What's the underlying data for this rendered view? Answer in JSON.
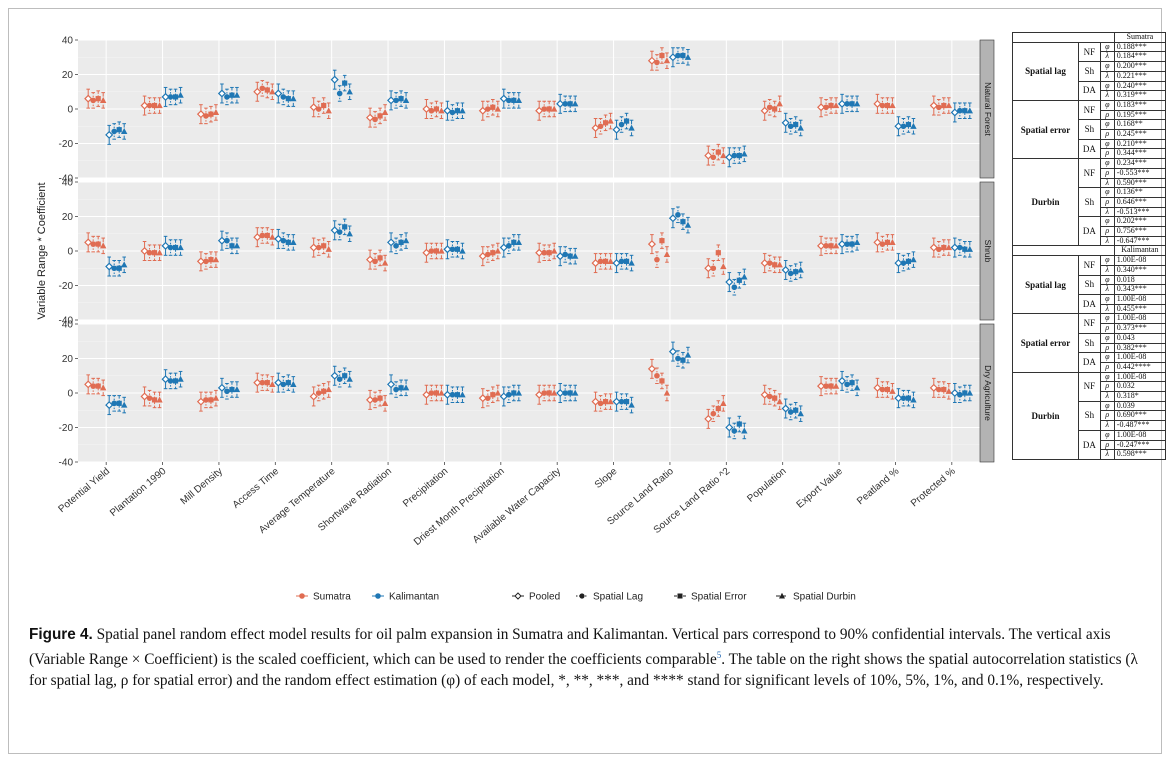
{
  "y_axis_title": "Variable Range * Coefficient",
  "panels": [
    "Natural Forest",
    "Shrub",
    "Dry Agriculture"
  ],
  "legend": {
    "regions": [
      {
        "label": "Sumatra",
        "color": "#e06c52"
      },
      {
        "label": "Kalimantan",
        "color": "#1f77b4"
      }
    ],
    "models": [
      "Pooled",
      "Spatial Lag",
      "Spatial Error",
      "Spatial Durbin"
    ]
  },
  "chart_data": {
    "type": "scatter",
    "title": "",
    "xlabel": "",
    "ylabel": "Variable Range * Coefficient",
    "ylim": [
      -40,
      40
    ],
    "yticks": [
      -40,
      -20,
      0,
      20,
      40
    ],
    "grid": true,
    "legend_position": "bottom",
    "categories": [
      "Potential Yield",
      "Plantation 1990",
      "Mill Density",
      "Access Time",
      "Average Temperature",
      "Shortwave Radiation",
      "Precipitation",
      "Driest Month Precipitation",
      "Available Water Capacity",
      "Slope",
      "Source Land Ratio",
      "Source Land Ratio ^2",
      "Population",
      "Export Value",
      "Peatland %",
      "Protected %"
    ],
    "series_order": [
      "Sumatra Pooled",
      "Sumatra Spatial Lag",
      "Sumatra Spatial Error",
      "Sumatra Spatial Durbin",
      "Kalimantan Pooled",
      "Kalimantan Spatial Lag",
      "Kalimantan Spatial Error",
      "Kalimantan Spatial Durbin"
    ],
    "facets": [
      {
        "panel": "Natural Forest",
        "sumatra": [
          [
            6,
            5,
            6,
            5
          ],
          [
            2,
            2,
            2,
            2
          ],
          [
            -3,
            -4,
            -3,
            -2
          ],
          [
            10,
            12,
            11,
            10
          ],
          [
            1,
            0,
            2,
            -1
          ],
          [
            -5,
            -6,
            -4,
            -2
          ],
          [
            0,
            -1,
            0,
            -1
          ],
          [
            -1,
            0,
            1,
            0
          ],
          [
            -1,
            0,
            0,
            0
          ],
          [
            -11,
            -10,
            -8,
            -7
          ],
          [
            28,
            27,
            31,
            28
          ],
          [
            -27,
            -28,
            -25,
            -27
          ],
          [
            -1,
            1,
            0,
            3
          ],
          [
            1,
            1,
            2,
            2
          ],
          [
            3,
            2,
            2,
            2
          ],
          [
            2,
            1,
            2,
            2
          ]
        ],
        "kalimantan": [
          [
            -15,
            -13,
            -12,
            -13
          ],
          [
            7,
            7,
            7,
            8
          ],
          [
            9,
            7,
            8,
            8
          ],
          [
            9,
            7,
            6,
            6
          ],
          [
            17,
            9,
            15,
            10
          ],
          [
            5,
            5,
            6,
            5
          ],
          [
            -1,
            -2,
            -1,
            -1
          ],
          [
            6,
            5,
            5,
            5
          ],
          [
            3,
            3,
            3,
            3
          ],
          [
            -12,
            -9,
            -7,
            -11
          ],
          [
            30,
            31,
            31,
            30
          ],
          [
            -28,
            -27,
            -27,
            -26
          ],
          [
            -8,
            -10,
            -9,
            -11
          ],
          [
            3,
            3,
            3,
            3
          ],
          [
            -10,
            -10,
            -9,
            -10
          ],
          [
            -2,
            -1,
            -1,
            -1
          ]
        ]
      },
      {
        "panel": "Shrub",
        "sumatra": [
          [
            5,
            4,
            4,
            3
          ],
          [
            0,
            -1,
            -1,
            -1
          ],
          [
            -6,
            -6,
            -5,
            -5
          ],
          [
            8,
            9,
            9,
            8
          ],
          [
            2,
            2,
            3,
            1
          ],
          [
            -5,
            -6,
            -4,
            -7
          ],
          [
            -1,
            0,
            0,
            0
          ],
          [
            -3,
            -2,
            -1,
            0
          ],
          [
            -1,
            -1,
            -1,
            0
          ],
          [
            -7,
            -6,
            -6,
            -6
          ],
          [
            4,
            -5,
            6,
            -2
          ],
          [
            -10,
            -10,
            -1,
            -9
          ],
          [
            -7,
            -7,
            -8,
            -8
          ],
          [
            3,
            3,
            3,
            3
          ],
          [
            5,
            4,
            5,
            5
          ],
          [
            2,
            1,
            2,
            2
          ]
        ],
        "kalimantan": [
          [
            -9,
            -10,
            -10,
            -8
          ],
          [
            3,
            2,
            2,
            2
          ],
          [
            6,
            6,
            3,
            3
          ],
          [
            7,
            6,
            5,
            5
          ],
          [
            12,
            11,
            14,
            10
          ],
          [
            5,
            3,
            5,
            6
          ],
          [
            1,
            1,
            1,
            0
          ],
          [
            2,
            3,
            5,
            5
          ],
          [
            -3,
            -2,
            -3,
            -3
          ],
          [
            -7,
            -6,
            -6,
            -7
          ],
          [
            19,
            21,
            17,
            15
          ],
          [
            -18,
            -21,
            -17,
            -15
          ],
          [
            -11,
            -13,
            -12,
            -11
          ],
          [
            4,
            4,
            4,
            5
          ],
          [
            -7,
            -7,
            -6,
            -5
          ],
          [
            2,
            2,
            1,
            1
          ]
        ]
      },
      {
        "panel": "Dry Agriculture",
        "sumatra": [
          [
            5,
            4,
            4,
            3
          ],
          [
            -2,
            -3,
            -4,
            -4
          ],
          [
            -5,
            -4,
            -4,
            -3
          ],
          [
            6,
            6,
            6,
            5
          ],
          [
            -2,
            0,
            1,
            2
          ],
          [
            -4,
            -4,
            -3,
            -6
          ],
          [
            -1,
            0,
            0,
            0
          ],
          [
            -3,
            -3,
            -1,
            0
          ],
          [
            -1,
            0,
            0,
            0
          ],
          [
            -5,
            -6,
            -5,
            -5
          ],
          [
            14,
            10,
            7,
            0
          ],
          [
            -15,
            -12,
            -9,
            -6
          ],
          [
            -1,
            -2,
            -3,
            -5
          ],
          [
            4,
            4,
            4,
            4
          ],
          [
            3,
            2,
            2,
            1
          ],
          [
            3,
            2,
            2,
            1
          ]
        ],
        "kalimantan": [
          [
            -7,
            -6,
            -6,
            -7
          ],
          [
            8,
            7,
            7,
            8
          ],
          [
            3,
            1,
            2,
            2
          ],
          [
            6,
            5,
            6,
            5
          ],
          [
            10,
            8,
            10,
            8
          ],
          [
            5,
            2,
            3,
            3
          ],
          [
            -1,
            -1,
            -1,
            -1
          ],
          [
            -2,
            -1,
            0,
            0
          ],
          [
            0,
            0,
            0,
            0
          ],
          [
            -5,
            -5,
            -5,
            -7
          ],
          [
            24,
            20,
            19,
            22
          ],
          [
            -20,
            -22,
            -18,
            -22
          ],
          [
            -9,
            -11,
            -10,
            -12
          ],
          [
            7,
            5,
            6,
            3
          ],
          [
            -3,
            -3,
            -3,
            -4
          ],
          [
            0,
            -1,
            0,
            0
          ]
        ]
      }
    ]
  },
  "table": {
    "sumatra_header": "Sumatra",
    "kalimantan_header": "Kalimantan",
    "sumatra": [
      {
        "group": "Spatial lag",
        "models": [
          {
            "model": "NF",
            "rows": [
              [
                "φ",
                "0.188***"
              ],
              [
                "λ",
                "0.184***"
              ]
            ]
          },
          {
            "model": "Sh",
            "rows": [
              [
                "φ",
                "0.200***"
              ],
              [
                "λ",
                "0.221***"
              ]
            ]
          },
          {
            "model": "DA",
            "rows": [
              [
                "φ",
                "0.240***"
              ],
              [
                "λ",
                "0.319***"
              ]
            ]
          }
        ]
      },
      {
        "group": "Spatial error",
        "models": [
          {
            "model": "NF",
            "rows": [
              [
                "φ",
                "0.183***"
              ],
              [
                "ρ",
                "0.195***"
              ]
            ]
          },
          {
            "model": "Sh",
            "rows": [
              [
                "φ",
                "0.168**"
              ],
              [
                "ρ",
                "0.245***"
              ]
            ]
          },
          {
            "model": "DA",
            "rows": [
              [
                "φ",
                "0.210***"
              ],
              [
                "ρ",
                "0.344***"
              ]
            ]
          }
        ]
      },
      {
        "group": "Durbin",
        "models": [
          {
            "model": "NF",
            "rows": [
              [
                "φ",
                "0.234***"
              ],
              [
                "ρ",
                "-0.553***"
              ],
              [
                "λ",
                "0.590***"
              ]
            ]
          },
          {
            "model": "Sh",
            "rows": [
              [
                "φ",
                "0.136**"
              ],
              [
                "ρ",
                "0.646***"
              ],
              [
                "λ",
                "-0.513***"
              ]
            ]
          },
          {
            "model": "DA",
            "rows": [
              [
                "φ",
                "0.202***"
              ],
              [
                "ρ",
                "0.756***"
              ],
              [
                "λ",
                "-0.647***"
              ]
            ]
          }
        ]
      }
    ],
    "kalimantan": [
      {
        "group": "Spatial lag",
        "models": [
          {
            "model": "NF",
            "rows": [
              [
                "φ",
                "1.00E-08"
              ],
              [
                "λ",
                "0.340***"
              ]
            ]
          },
          {
            "model": "Sh",
            "rows": [
              [
                "φ",
                "0.018"
              ],
              [
                "λ",
                "0.343***"
              ]
            ]
          },
          {
            "model": "DA",
            "rows": [
              [
                "φ",
                "1.00E-08"
              ],
              [
                "λ",
                "0.455***"
              ]
            ]
          }
        ]
      },
      {
        "group": "Spatial error",
        "models": [
          {
            "model": "NF",
            "rows": [
              [
                "φ",
                "1.00E-08"
              ],
              [
                "ρ",
                "0.373***"
              ]
            ]
          },
          {
            "model": "Sh",
            "rows": [
              [
                "φ",
                "0.043"
              ],
              [
                "ρ",
                "0.382***"
              ]
            ]
          },
          {
            "model": "DA",
            "rows": [
              [
                "φ",
                "1.00E-08"
              ],
              [
                "ρ",
                "0.442****"
              ]
            ]
          }
        ]
      },
      {
        "group": "Durbin",
        "models": [
          {
            "model": "NF",
            "rows": [
              [
                "φ",
                "1.00E-08"
              ],
              [
                "ρ",
                "0.032"
              ],
              [
                "λ",
                "0.318*"
              ]
            ]
          },
          {
            "model": "Sh",
            "rows": [
              [
                "φ",
                "0.039"
              ],
              [
                "ρ",
                "0.690***"
              ],
              [
                "λ",
                "-0.487***"
              ]
            ]
          },
          {
            "model": "DA",
            "rows": [
              [
                "φ",
                "1.00E-08"
              ],
              [
                "ρ",
                "-0.247***"
              ],
              [
                "λ",
                "0.598***"
              ]
            ]
          }
        ]
      }
    ]
  },
  "caption": {
    "label": "Figure 4.",
    "text": "Spatial panel random effect model results for oil palm expansion in Sumatra and Kalimantan. Vertical pars correspond to 90% confidential intervals. The vertical axis (Variable Range × Coefficient) is the scaled coefficient, which can be used to render the coefficients comparable",
    "footnote_ref": "5",
    "text2": ". The table on the right shows the spatial autocorrelation statistics (λ for spatial lag, ρ for spatial error) and the random effect estimation (φ) of each model, *, **, ***, and **** stand for significant levels of 10%, 5%, 1%, and 0.1%, respectively."
  }
}
